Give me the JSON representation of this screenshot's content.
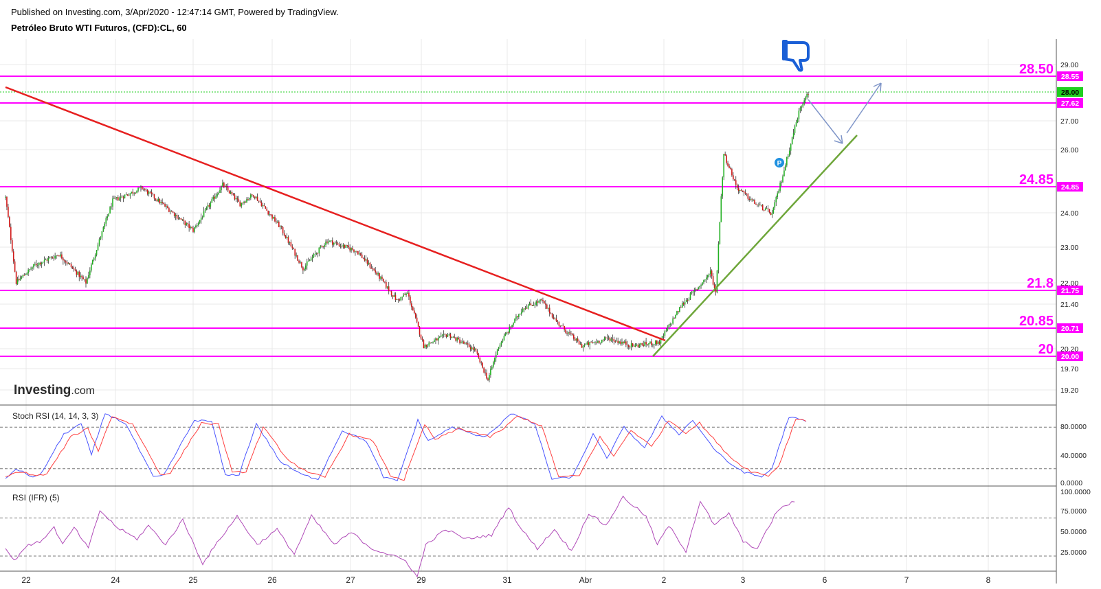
{
  "header": {
    "published": "Published on Investing.com, 3/Apr/2020 - 12:47:14 GMT, Powered by TradingView.",
    "symbol": "Petróleo Bruto WTI Futuros, (CFD):CL, 60"
  },
  "branding": {
    "logo_bold": "Investing",
    "logo_suffix": ".com"
  },
  "colors": {
    "up": "#22b022",
    "down": "#d01818",
    "level": "#ff00ff",
    "trend_down": "#e62020",
    "trend_up": "#6ea63a",
    "arrow": "#7f95c8",
    "thumb": "#1a5fd6",
    "last_price": "#1fcf1f",
    "stoch_k": "#4a55ff",
    "stoch_d": "#ff4040",
    "rsi": "#b04ab8",
    "grid": "#e8e8e8"
  },
  "chart_data": [
    {
      "type": "candlestick",
      "title": "Petróleo Bruto WTI Futuros, (CFD):CL, 60",
      "x_ticks": [
        "22",
        "24",
        "25",
        "26",
        "27",
        "29",
        "31",
        "Abr",
        "2",
        "3",
        "6",
        "7",
        "8"
      ],
      "y_ticks": [
        "29.00",
        "27.00",
        "26.00",
        "24.00",
        "23.00",
        "22.00",
        "21.40",
        "20.20",
        "19.70",
        "19.20"
      ],
      "ylim": [
        19.0,
        29.3
      ],
      "y_scale": "log",
      "grid": true,
      "last_price": "28.00",
      "anchors": [
        [
          0,
          24.5
        ],
        [
          8,
          22.0
        ],
        [
          22,
          22.5
        ],
        [
          40,
          22.8
        ],
        [
          60,
          22.0
        ],
        [
          80,
          24.4
        ],
        [
          102,
          24.8
        ],
        [
          120,
          24.2
        ],
        [
          140,
          23.5
        ],
        [
          162,
          24.9
        ],
        [
          175,
          24.3
        ],
        [
          185,
          24.6
        ],
        [
          205,
          23.6
        ],
        [
          222,
          22.4
        ],
        [
          240,
          23.2
        ],
        [
          262,
          22.9
        ],
        [
          278,
          22.2
        ],
        [
          292,
          21.5
        ],
        [
          300,
          21.7
        ],
        [
          312,
          20.3
        ],
        [
          330,
          20.6
        ],
        [
          350,
          20.2
        ],
        [
          360,
          19.45
        ],
        [
          368,
          20.3
        ],
        [
          386,
          21.3
        ],
        [
          400,
          21.5
        ],
        [
          412,
          20.9
        ],
        [
          430,
          20.3
        ],
        [
          450,
          20.5
        ],
        [
          468,
          20.3
        ],
        [
          488,
          20.4
        ],
        [
          505,
          21.4
        ],
        [
          520,
          22.0
        ],
        [
          526,
          22.3
        ],
        [
          530,
          21.7
        ],
        [
          536,
          25.9
        ],
        [
          546,
          24.8
        ],
        [
          560,
          24.3
        ],
        [
          572,
          24.0
        ],
        [
          580,
          25.2
        ],
        [
          592,
          27.3
        ],
        [
          598,
          28.0
        ]
      ],
      "levels": [
        {
          "label": "28.50",
          "tag": "28.55"
        },
        {
          "label": "",
          "tag": "27.62"
        },
        {
          "label": "24.85",
          "tag": "24.85"
        },
        {
          "label": "21.8",
          "tag": "21.75"
        },
        {
          "label": "20.85",
          "tag": "20.71"
        },
        {
          "label": "20",
          "tag": "20.00"
        }
      ]
    },
    {
      "type": "line",
      "title": "Stoch RSI (14, 14, 3, 3)",
      "y_ticks": [
        "80.0000",
        "40.0000",
        "0.0000"
      ],
      "ylim": [
        0,
        100
      ],
      "guides": [
        80,
        20
      ],
      "series": [
        {
          "color_key": "stoch_k",
          "anchors": [
            [
              0,
              5
            ],
            [
              6,
              20
            ],
            [
              16,
              8
            ],
            [
              20,
              10
            ],
            [
              34,
              70
            ],
            [
              44,
              85
            ],
            [
              50,
              40
            ],
            [
              58,
              100
            ],
            [
              70,
              85
            ],
            [
              86,
              8
            ],
            [
              92,
              10
            ],
            [
              110,
              90
            ],
            [
              120,
              88
            ],
            [
              128,
              10
            ],
            [
              136,
              12
            ],
            [
              146,
              85
            ],
            [
              160,
              30
            ],
            [
              172,
              12
            ],
            [
              182,
              5
            ],
            [
              196,
              75
            ],
            [
              210,
              60
            ],
            [
              220,
              8
            ],
            [
              228,
              2
            ],
            [
              240,
              90
            ],
            [
              246,
              60
            ],
            [
              260,
              80
            ],
            [
              278,
              65
            ],
            [
              286,
              80
            ],
            [
              294,
              100
            ],
            [
              308,
              85
            ],
            [
              318,
              5
            ],
            [
              330,
              8
            ],
            [
              342,
              70
            ],
            [
              350,
              35
            ],
            [
              360,
              80
            ],
            [
              372,
              50
            ],
            [
              382,
              95
            ],
            [
              392,
              70
            ],
            [
              400,
              90
            ],
            [
              412,
              50
            ],
            [
              420,
              30
            ],
            [
              430,
              15
            ],
            [
              440,
              8
            ],
            [
              446,
              20
            ],
            [
              456,
              95
            ],
            [
              466,
              88
            ]
          ]
        },
        {
          "color_key": "stoch_d",
          "anchors": [
            [
              0,
              8
            ],
            [
              8,
              16
            ],
            [
              18,
              10
            ],
            [
              24,
              12
            ],
            [
              38,
              66
            ],
            [
              48,
              78
            ],
            [
              54,
              46
            ],
            [
              62,
              96
            ],
            [
              74,
              84
            ],
            [
              90,
              12
            ],
            [
              96,
              14
            ],
            [
              114,
              86
            ],
            [
              124,
              84
            ],
            [
              132,
              14
            ],
            [
              140,
              16
            ],
            [
              150,
              80
            ],
            [
              164,
              34
            ],
            [
              176,
              14
            ],
            [
              186,
              8
            ],
            [
              200,
              70
            ],
            [
              214,
              60
            ],
            [
              224,
              10
            ],
            [
              232,
              4
            ],
            [
              244,
              84
            ],
            [
              250,
              62
            ],
            [
              264,
              78
            ],
            [
              282,
              66
            ],
            [
              290,
              78
            ],
            [
              298,
              96
            ],
            [
              312,
              82
            ],
            [
              322,
              8
            ],
            [
              334,
              10
            ],
            [
              346,
              66
            ],
            [
              354,
              38
            ],
            [
              364,
              76
            ],
            [
              376,
              52
            ],
            [
              386,
              90
            ],
            [
              396,
              72
            ],
            [
              404,
              86
            ],
            [
              416,
              52
            ],
            [
              424,
              32
            ],
            [
              434,
              16
            ],
            [
              444,
              10
            ],
            [
              450,
              24
            ],
            [
              460,
              92
            ],
            [
              466,
              90
            ]
          ]
        }
      ]
    },
    {
      "type": "line",
      "title": "RSI (IFR) (5)",
      "y_ticks": [
        "100.0000",
        "75.0000",
        "50.0000",
        "25.0000"
      ],
      "ylim": [
        12,
        100
      ],
      "guides": [
        70,
        30
      ],
      "series": [
        {
          "color_key": "rsi",
          "anchors": [
            [
              0,
              38
            ],
            [
              6,
              25
            ],
            [
              14,
              40
            ],
            [
              24,
              45
            ],
            [
              34,
              60
            ],
            [
              40,
              42
            ],
            [
              48,
              60
            ],
            [
              58,
              38
            ],
            [
              66,
              78
            ],
            [
              78,
              60
            ],
            [
              92,
              48
            ],
            [
              100,
              62
            ],
            [
              112,
              42
            ],
            [
              124,
              68
            ],
            [
              138,
              22
            ],
            [
              150,
              48
            ],
            [
              162,
              72
            ],
            [
              176,
              42
            ],
            [
              190,
              58
            ],
            [
              202,
              32
            ],
            [
              214,
              72
            ],
            [
              230,
              42
            ],
            [
              242,
              55
            ],
            [
              256,
              38
            ],
            [
              268,
              32
            ],
            [
              280,
              25
            ],
            [
              288,
              8
            ],
            [
              294,
              42
            ],
            [
              308,
              58
            ],
            [
              322,
              48
            ],
            [
              340,
              52
            ],
            [
              352,
              82
            ],
            [
              360,
              60
            ],
            [
              372,
              38
            ],
            [
              384,
              58
            ],
            [
              396,
              35
            ],
            [
              408,
              75
            ],
            [
              420,
              62
            ],
            [
              432,
              92
            ],
            [
              448,
              72
            ],
            [
              456,
              42
            ],
            [
              464,
              62
            ],
            [
              476,
              35
            ],
            [
              486,
              88
            ],
            [
              496,
              62
            ],
            [
              506,
              75
            ],
            [
              516,
              45
            ],
            [
              526,
              38
            ],
            [
              540,
              78
            ],
            [
              552,
              88
            ]
          ]
        }
      ]
    }
  ]
}
